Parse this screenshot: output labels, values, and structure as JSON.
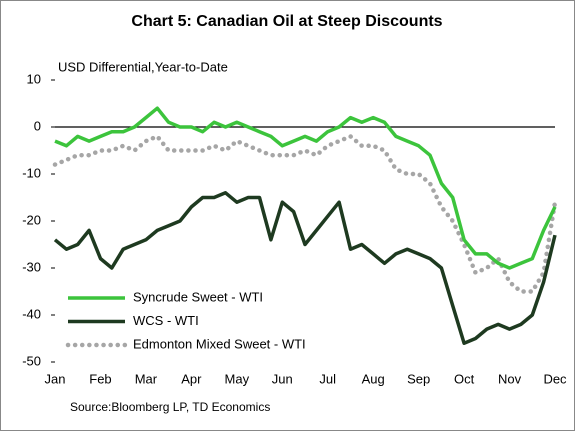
{
  "chart_data": {
    "type": "line",
    "title": "Chart 5: Canadian Oil at Steep Discounts",
    "y_label": "USD Differential,Year-to-Date",
    "source": "Source:Bloomberg LP, TD Economics",
    "categories": [
      "Jan",
      null,
      null,
      null,
      "Feb",
      null,
      null,
      null,
      "Mar",
      null,
      null,
      null,
      "Apr",
      null,
      null,
      null,
      "May",
      null,
      null,
      null,
      "Jun",
      null,
      null,
      null,
      "Jul",
      null,
      null,
      null,
      "Aug",
      null,
      null,
      null,
      "Sep",
      null,
      null,
      null,
      "Oct",
      null,
      null,
      null,
      "Nov",
      null,
      null,
      null,
      "Dec"
    ],
    "series": [
      {
        "name": "Syncrude Sweet - WTI",
        "color": "#3cc43c",
        "linestyle": "solid",
        "values": [
          -3,
          -4,
          -2,
          -3,
          -2,
          -1,
          -1,
          0,
          2,
          4,
          1,
          0,
          0,
          -1,
          1,
          0,
          1,
          0,
          -1,
          -2,
          -4,
          -3,
          -2,
          -3,
          -1,
          0,
          2,
          1,
          2,
          1,
          -2,
          -3,
          -4,
          -6,
          -12,
          -15,
          -24,
          -27,
          -27,
          -29,
          -30,
          -29,
          -28,
          -22,
          -17
        ]
      },
      {
        "name": "WCS - WTI",
        "color": "#1e3a20",
        "linestyle": "solid",
        "values": [
          -24,
          -26,
          -25,
          -22,
          -28,
          -30,
          -26,
          -25,
          -24,
          -22,
          -21,
          -20,
          -17,
          -15,
          -15,
          -14,
          -16,
          -15,
          -15,
          -24,
          -16,
          -18,
          -25,
          -22,
          -19,
          -16,
          -26,
          -25,
          -27,
          -29,
          -27,
          -26,
          -27,
          -28,
          -30,
          -38,
          -46,
          -45,
          -43,
          -42,
          -43,
          -42,
          -40,
          -33,
          -23
        ]
      },
      {
        "name": "Edmonton Mixed Sweet - WTI",
        "color": "#a6a6a6",
        "linestyle": "dotted",
        "values": [
          -8,
          -7,
          -6,
          -6,
          -5,
          -5,
          -4,
          -5,
          -3,
          -2,
          -5,
          -5,
          -5,
          -5,
          -4,
          -5,
          -3,
          -4,
          -5,
          -6,
          -6,
          -6,
          -5,
          -6,
          -4,
          -3,
          -2,
          -4,
          -4,
          -5,
          -9,
          -10,
          -10,
          -12,
          -17,
          -20,
          -25,
          -31,
          -30,
          -28,
          -33,
          -35,
          -35,
          -31,
          -16
        ]
      }
    ],
    "ylim": [
      -50,
      10
    ],
    "yticks": [
      -50,
      -40,
      -30,
      -20,
      -10,
      0,
      10
    ],
    "zero_line": true
  }
}
